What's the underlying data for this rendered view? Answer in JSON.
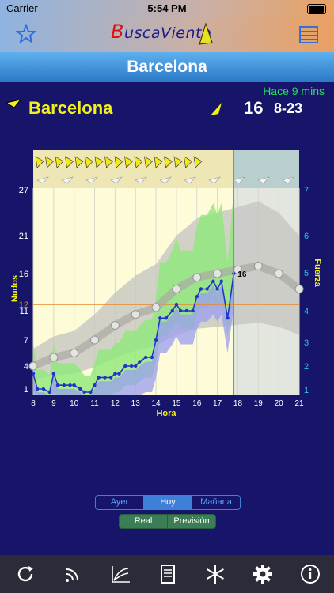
{
  "status_bar": {
    "carrier": "Carrier",
    "time": "5:54 PM"
  },
  "app": {
    "logo_text": "uscaViento",
    "logo_initial": "B"
  },
  "header": {
    "title": "Barcelona"
  },
  "station": {
    "name": "Barcelona",
    "updated": "Hace 9 mins",
    "current_speed": "16",
    "range": "8-23"
  },
  "chart_data": {
    "type": "line",
    "xlabel": "Hora",
    "ylabel_left": "Nudos",
    "ylabel_right": "Fuerza",
    "x_ticks": [
      "8",
      "9",
      "10",
      "11",
      "12",
      "13",
      "14",
      "15",
      "16",
      "17",
      "18",
      "19",
      "20",
      "21"
    ],
    "y_ticks_left": [
      "1",
      "4",
      "7",
      "11",
      "12",
      "16",
      "21",
      "27"
    ],
    "y_ticks_right": [
      "1",
      "2",
      "3",
      "4",
      "5",
      "6",
      "7"
    ],
    "threshold_label": "12",
    "last_value_label": "16",
    "now_hour": 17.8,
    "series": [
      {
        "values": [
          [
            8,
            3
          ],
          [
            8.2,
            1
          ],
          [
            8.5,
            1
          ],
          [
            8.8,
            0.5
          ],
          [
            9,
            3
          ],
          [
            9.2,
            1.5
          ],
          [
            9.5,
            1.5
          ],
          [
            9.8,
            1.5
          ],
          [
            10,
            1.5
          ],
          [
            10.3,
            1
          ],
          [
            10.5,
            0.5
          ],
          [
            10.8,
            0.5
          ],
          [
            11,
            1.5
          ],
          [
            11.2,
            2.5
          ],
          [
            11.5,
            2.5
          ],
          [
            11.8,
            2.5
          ],
          [
            12,
            3
          ],
          [
            12.2,
            3
          ],
          [
            12.5,
            4
          ],
          [
            12.8,
            4
          ],
          [
            13,
            4
          ],
          [
            13.2,
            4.5
          ],
          [
            13.5,
            5
          ],
          [
            13.8,
            5
          ],
          [
            14,
            7
          ],
          [
            14.2,
            10
          ],
          [
            14.5,
            10
          ],
          [
            14.8,
            11
          ],
          [
            15,
            12
          ],
          [
            15.2,
            11
          ],
          [
            15.5,
            11
          ],
          [
            15.8,
            11
          ],
          [
            16,
            13
          ],
          [
            16.2,
            14
          ],
          [
            16.5,
            14
          ],
          [
            16.8,
            15
          ],
          [
            17,
            14
          ],
          [
            17.2,
            15
          ],
          [
            17.5,
            10
          ],
          [
            17.8,
            16
          ]
        ]
      },
      {
        "values": [
          [
            8,
            4
          ],
          [
            9,
            5
          ],
          [
            10,
            5.5
          ],
          [
            11,
            7
          ],
          [
            12,
            9
          ],
          [
            13,
            10.5
          ],
          [
            14,
            11.5
          ],
          [
            15,
            14
          ],
          [
            16,
            15.5
          ],
          [
            17,
            16
          ],
          [
            18,
            16.5
          ],
          [
            19,
            17
          ],
          [
            20,
            16
          ],
          [
            21,
            14
          ]
        ]
      }
    ],
    "direction_row_colors": [
      "yellow",
      "gray"
    ]
  },
  "segments": {
    "days": [
      "Ayer",
      "Hoy",
      "Mañana"
    ],
    "active_day": "Hoy",
    "modes": [
      "Real",
      "Previsión"
    ]
  },
  "tabbar": {
    "icons": [
      "refresh-icon",
      "broadcast-icon",
      "chart-icon",
      "document-icon",
      "snowflake-icon",
      "gear-icon",
      "info-icon"
    ]
  },
  "colors": {
    "accent": "#1e90ff",
    "station": "#f2f21a",
    "updated": "#25e05c",
    "threshold": "#e8882a"
  }
}
